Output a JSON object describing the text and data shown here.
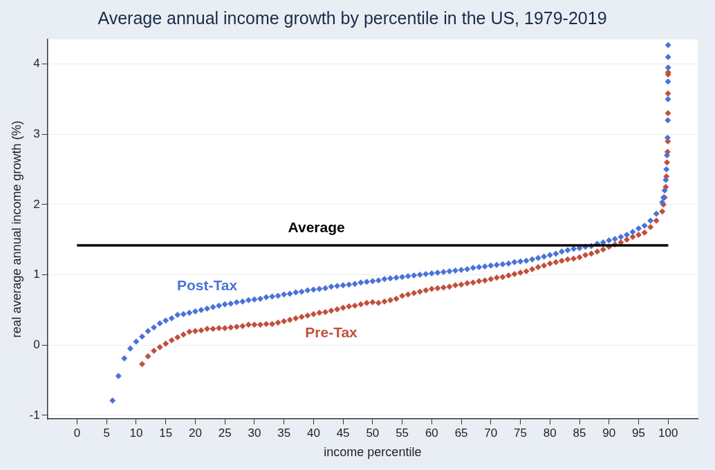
{
  "chart_data": {
    "type": "scatter",
    "title": "Average annual income growth by percentile in the US, 1979-2019",
    "xlabel": "income percentile",
    "ylabel": "real average annual income growth (%)",
    "xlim": [
      -5,
      105
    ],
    "xticks": [
      0,
      5,
      10,
      15,
      20,
      25,
      30,
      35,
      40,
      45,
      50,
      55,
      60,
      65,
      70,
      75,
      80,
      85,
      90,
      95,
      100
    ],
    "ylim": [
      -1.05,
      4.35
    ],
    "yticks": [
      -1,
      0,
      1,
      2,
      3,
      4
    ],
    "grid": "y",
    "legend": false,
    "marker": "diamond",
    "ref_lines": [
      {
        "axis": "y",
        "value": 1.42,
        "label": "Average",
        "color": "#000000"
      }
    ],
    "series": [
      {
        "name": "Post-Tax",
        "color": "#4a72d8",
        "x": [
          6,
          7,
          8,
          9,
          10,
          11,
          12,
          13,
          14,
          15,
          16,
          17,
          18,
          19,
          20,
          21,
          22,
          23,
          24,
          25,
          26,
          27,
          28,
          29,
          30,
          31,
          32,
          33,
          34,
          35,
          36,
          37,
          38,
          39,
          40,
          41,
          42,
          43,
          44,
          45,
          46,
          47,
          48,
          49,
          50,
          51,
          52,
          53,
          54,
          55,
          56,
          57,
          58,
          59,
          60,
          61,
          62,
          63,
          64,
          65,
          66,
          67,
          68,
          69,
          70,
          71,
          72,
          73,
          74,
          75,
          76,
          77,
          78,
          79,
          80,
          81,
          82,
          83,
          84,
          85,
          86,
          87,
          88,
          89,
          90,
          91,
          92,
          93,
          94,
          95,
          96,
          97,
          98,
          99,
          99.2,
          99.4,
          99.6,
          99.7,
          99.8,
          99.9,
          99.95,
          99.97,
          99.98,
          99.99,
          99.995,
          99.999
        ],
        "values": [
          -0.79,
          -0.44,
          -0.19,
          -0.05,
          0.05,
          0.12,
          0.2,
          0.25,
          0.31,
          0.35,
          0.38,
          0.43,
          0.44,
          0.46,
          0.48,
          0.5,
          0.52,
          0.54,
          0.56,
          0.58,
          0.59,
          0.61,
          0.62,
          0.64,
          0.65,
          0.66,
          0.68,
          0.69,
          0.7,
          0.72,
          0.73,
          0.75,
          0.76,
          0.78,
          0.79,
          0.8,
          0.81,
          0.83,
          0.84,
          0.85,
          0.86,
          0.87,
          0.89,
          0.9,
          0.91,
          0.92,
          0.94,
          0.95,
          0.96,
          0.97,
          0.98,
          0.99,
          1.0,
          1.01,
          1.02,
          1.03,
          1.04,
          1.05,
          1.06,
          1.07,
          1.08,
          1.1,
          1.11,
          1.12,
          1.13,
          1.14,
          1.15,
          1.16,
          1.18,
          1.19,
          1.2,
          1.22,
          1.24,
          1.26,
          1.28,
          1.3,
          1.33,
          1.35,
          1.37,
          1.38,
          1.4,
          1.41,
          1.44,
          1.46,
          1.49,
          1.51,
          1.54,
          1.57,
          1.61,
          1.66,
          1.7,
          1.77,
          1.87,
          2.03,
          2.1,
          2.2,
          2.35,
          2.5,
          2.7,
          2.95,
          3.2,
          3.5,
          3.75,
          3.95,
          4.1,
          4.27
        ]
      },
      {
        "name": "Pre-Tax",
        "color": "#c0503c",
        "x": [
          11,
          12,
          13,
          14,
          15,
          16,
          17,
          18,
          19,
          20,
          21,
          22,
          23,
          24,
          25,
          26,
          27,
          28,
          29,
          30,
          31,
          32,
          33,
          34,
          35,
          36,
          37,
          38,
          39,
          40,
          41,
          42,
          43,
          44,
          45,
          46,
          47,
          48,
          49,
          50,
          51,
          52,
          53,
          54,
          55,
          56,
          57,
          58,
          59,
          60,
          61,
          62,
          63,
          64,
          65,
          66,
          67,
          68,
          69,
          70,
          71,
          72,
          73,
          74,
          75,
          76,
          77,
          78,
          79,
          80,
          81,
          82,
          83,
          84,
          85,
          86,
          87,
          88,
          89,
          90,
          91,
          92,
          93,
          94,
          95,
          96,
          97,
          98,
          99,
          99.2,
          99.4,
          99.6,
          99.7,
          99.8,
          99.9,
          99.95,
          99.97,
          99.98,
          99.99,
          99.999
        ],
        "values": [
          -0.27,
          -0.16,
          -0.08,
          -0.03,
          0.02,
          0.07,
          0.11,
          0.15,
          0.19,
          0.2,
          0.21,
          0.23,
          0.23,
          0.24,
          0.24,
          0.25,
          0.26,
          0.27,
          0.29,
          0.29,
          0.29,
          0.3,
          0.3,
          0.32,
          0.34,
          0.36,
          0.38,
          0.4,
          0.42,
          0.44,
          0.46,
          0.47,
          0.49,
          0.51,
          0.53,
          0.55,
          0.56,
          0.58,
          0.6,
          0.61,
          0.6,
          0.62,
          0.64,
          0.66,
          0.7,
          0.72,
          0.74,
          0.76,
          0.78,
          0.8,
          0.81,
          0.82,
          0.83,
          0.85,
          0.86,
          0.88,
          0.89,
          0.91,
          0.92,
          0.94,
          0.96,
          0.97,
          0.99,
          1.01,
          1.03,
          1.05,
          1.08,
          1.11,
          1.13,
          1.16,
          1.18,
          1.2,
          1.22,
          1.23,
          1.25,
          1.28,
          1.3,
          1.33,
          1.36,
          1.4,
          1.43,
          1.46,
          1.5,
          1.54,
          1.57,
          1.6,
          1.68,
          1.77,
          1.9,
          2.0,
          2.1,
          2.25,
          2.4,
          2.6,
          2.75,
          2.9,
          3.3,
          3.58,
          3.85,
          3.88
        ]
      }
    ]
  }
}
